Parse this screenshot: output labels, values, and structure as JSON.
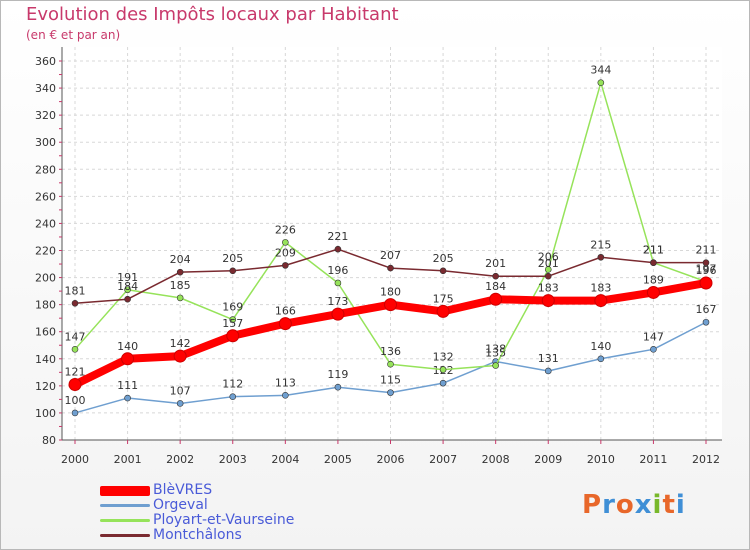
{
  "header": {
    "title": "Evolution des Impôts locaux par Habitant",
    "subtitle": "(en € et par an)"
  },
  "logo": {
    "text": "Proxiti",
    "colors": [
      "#e8672a",
      "#3f8fd6",
      "#e8672a",
      "#3f8fd6",
      "#78b82a",
      "#e8672a",
      "#3f8fd6"
    ]
  },
  "chart_data": {
    "type": "line",
    "title": "Evolution des Impôts locaux par Habitant",
    "subtitle": "(en € et par an)",
    "xlabel": "",
    "ylabel": "",
    "ylim": [
      80,
      360
    ],
    "ytick_step": 20,
    "grid": true,
    "legend_position": "bottom-left",
    "x": [
      "2000",
      "2001",
      "2002",
      "2003",
      "2004",
      "2005",
      "2006",
      "2007",
      "2008",
      "2009",
      "2010",
      "2011",
      "2012"
    ],
    "series": [
      {
        "name": "BlèVRES",
        "color": "#ff0000",
        "width": 8,
        "values": [
          121,
          140,
          142,
          157,
          166,
          173,
          180,
          175,
          184,
          183,
          183,
          189,
          196
        ]
      },
      {
        "name": "Orgeval",
        "color": "#6f9fd0",
        "width": 1.5,
        "values": [
          100,
          111,
          107,
          112,
          113,
          119,
          115,
          122,
          138,
          131,
          140,
          147,
          167
        ]
      },
      {
        "name": "Ployart-et-Vaurseine",
        "color": "#96e35a",
        "width": 1.5,
        "values": [
          147,
          191,
          185,
          169,
          226,
          196,
          136,
          132,
          135,
          206,
          344,
          211,
          197
        ]
      },
      {
        "name": "Montchâlons",
        "color": "#7a2a30",
        "width": 1.5,
        "values": [
          181,
          184,
          204,
          205,
          209,
          221,
          207,
          205,
          201,
          201,
          215,
          211,
          211
        ]
      }
    ]
  }
}
